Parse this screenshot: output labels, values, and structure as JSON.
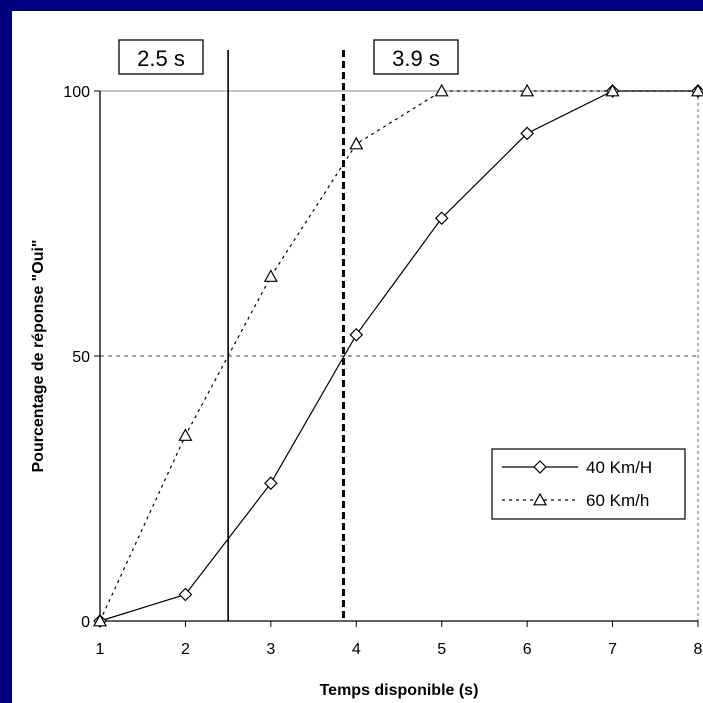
{
  "colors": {
    "background": "#000080",
    "panel": "#ffffff",
    "ink": "#000000"
  },
  "chart_data": {
    "type": "line",
    "xlabel": "Temps disponible (s)",
    "ylabel": "Pourcentage de réponse \"Oui\"",
    "xlim": [
      1,
      8
    ],
    "ylim": [
      0,
      100
    ],
    "x_ticks": [
      "1",
      "2",
      "3",
      "4",
      "5",
      "6",
      "7",
      "8"
    ],
    "y_ticks": [
      "0",
      "50",
      "100"
    ],
    "grid": "horizontal dashed at 50 and 100",
    "legend_position": "bottom-right",
    "series": [
      {
        "name": "40 Km/H",
        "line": "solid",
        "marker": "diamond",
        "x": [
          1,
          2,
          3,
          4,
          5,
          6,
          7,
          8
        ],
        "values": [
          0,
          5,
          26,
          54,
          76,
          92,
          100,
          100
        ]
      },
      {
        "name": "60 Km/h",
        "line": "dotted",
        "marker": "triangle",
        "x": [
          1,
          2,
          3,
          4,
          5,
          6,
          7,
          8
        ],
        "values": [
          0,
          35,
          65,
          90,
          100,
          100,
          100,
          100
        ]
      }
    ],
    "annotations": [
      {
        "label": "2.5 s",
        "x": 2.5,
        "line": "solid"
      },
      {
        "label": "3.9 s",
        "x": 3.85,
        "line": "dashed"
      }
    ]
  }
}
